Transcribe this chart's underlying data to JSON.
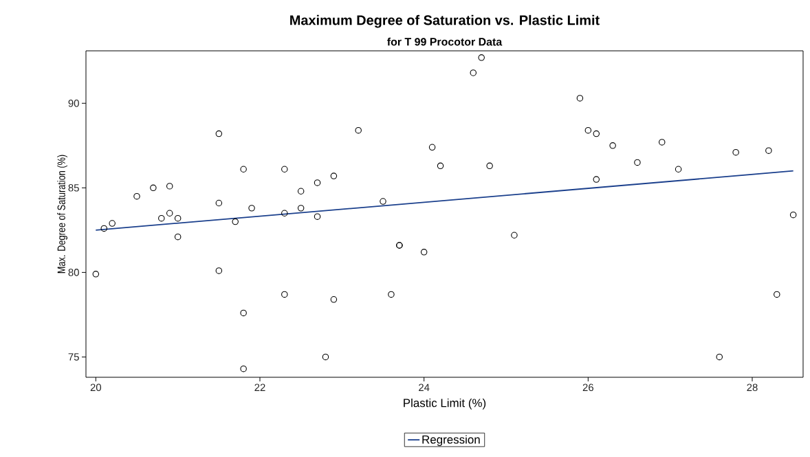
{
  "chart_data": {
    "type": "scatter",
    "title": "Maximum Degree of Saturation vs. Plastic Limit",
    "subtitle": "for T 99 Procotor Data",
    "xlabel": "Plastic Limit (%)",
    "ylabel": "Max. Degree of Saturation (%)",
    "xlim": [
      19.88,
      28.62
    ],
    "ylim": [
      73.8,
      93.1
    ],
    "xticks": [
      20,
      22,
      24,
      26,
      28
    ],
    "yticks": [
      75,
      80,
      85,
      90
    ],
    "grid": false,
    "legend": "bottom",
    "series": [
      {
        "marker": "circle",
        "color": "#000000",
        "x": [
          20.1,
          20.2,
          20.5,
          20.7,
          20.9,
          20.8,
          20.9,
          21.0,
          21.0,
          21.5,
          21.5,
          21.8,
          21.7,
          21.9,
          22.3,
          22.3,
          22.5,
          22.5,
          22.7,
          22.7,
          22.9,
          23.2,
          23.5,
          23.7,
          23.7,
          24.7,
          24.6,
          24.1,
          24.2,
          24.8,
          25.1,
          25.9,
          26.0,
          26.1,
          26.3,
          26.9,
          26.6,
          27.1,
          26.1,
          27.8,
          28.2,
          28.5,
          20.0,
          21.5,
          21.8,
          21.8,
          22.3,
          22.9,
          22.8,
          23.6,
          24.0,
          27.6,
          28.3
        ],
        "values": [
          82.6,
          82.9,
          84.5,
          85.0,
          85.1,
          83.2,
          83.5,
          83.2,
          82.1,
          88.2,
          84.1,
          86.1,
          83.0,
          83.8,
          86.1,
          83.5,
          84.8,
          83.8,
          85.3,
          83.3,
          85.7,
          88.4,
          84.2,
          81.6,
          81.6,
          92.7,
          91.8,
          87.4,
          86.3,
          86.3,
          82.2,
          90.3,
          88.4,
          88.2,
          87.5,
          87.7,
          86.5,
          86.1,
          85.5,
          87.1,
          87.2,
          83.4,
          79.9,
          80.1,
          77.6,
          74.3,
          78.7,
          78.4,
          75.0,
          78.7,
          81.2,
          75.0,
          78.7
        ]
      },
      {
        "type": "line",
        "name": "Regression",
        "marker": "none",
        "color": "#1a3f8c",
        "x": [
          20.0,
          28.5
        ],
        "values": [
          82.5,
          86.0
        ]
      }
    ]
  }
}
